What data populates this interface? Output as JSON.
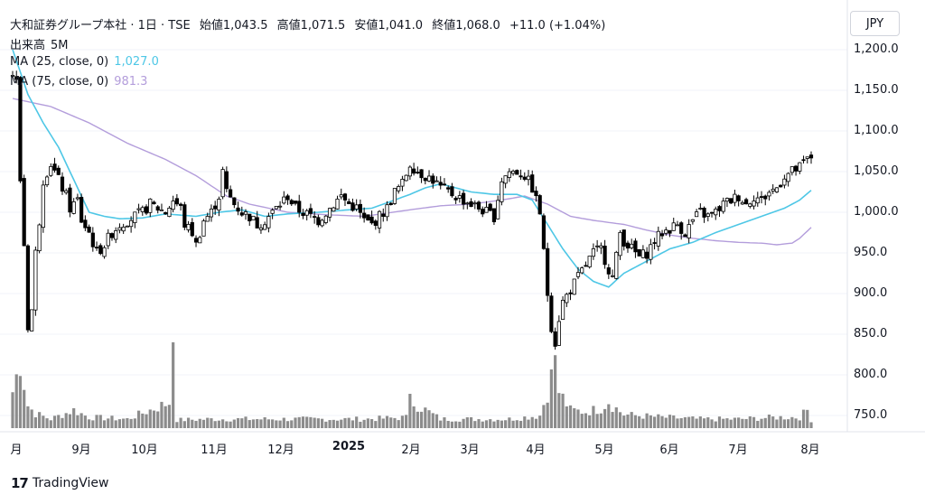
{
  "header": {
    "symbol": "大和証券グループ本社 · 1日 · TSE",
    "open_label": "始値",
    "open": "1,043.5",
    "high_label": "高値",
    "high": "1,071.5",
    "low_label": "安値",
    "low": "1,041.0",
    "close_label": "終値",
    "close": "1,068.0",
    "change": "+11.0 (+1.04%)",
    "volume_label": "出来高",
    "volume": "5M",
    "ma25_label": "MA (25, close, 0)",
    "ma25_value": "1,027.0",
    "ma75_label": "MA (75, close, 0)",
    "ma75_value": "981.3"
  },
  "currency": "JPY",
  "brand": "TradingView",
  "colors": {
    "up": "#ffffff",
    "down": "#000000",
    "wick": "#000000",
    "ma25": "#4ec7e6",
    "ma75": "#b39ddb",
    "volume": "#8c8c8c",
    "grid": "#f0f3fa"
  },
  "chart_data": {
    "type": "candlestick",
    "y_axis": {
      "ticks": [
        "1,200.0",
        "1,150.0",
        "1,100.0",
        "1,050.0",
        "1,000.0",
        "950.0",
        "900.0",
        "850.0",
        "800.0",
        "750.0"
      ],
      "min": 740,
      "max": 1215
    },
    "x_axis": {
      "ticks": [
        "月",
        "9月",
        "10月",
        "11月",
        "12月",
        "2025",
        "2月",
        "3月",
        "4月",
        "5月",
        "6月",
        "7月",
        "8月"
      ]
    },
    "price_anchors": [
      [
        0,
        1170
      ],
      [
        1,
        1160
      ],
      [
        2,
        1040
      ],
      [
        3,
        960
      ],
      [
        4,
        860
      ],
      [
        5,
        880
      ],
      [
        6,
        950
      ],
      [
        7,
        990
      ],
      [
        8,
        1040
      ],
      [
        10,
        1060
      ],
      [
        12,
        1040
      ],
      [
        14,
        1020
      ],
      [
        15,
        1005
      ],
      [
        17,
        1015
      ],
      [
        18,
        990
      ],
      [
        20,
        975
      ],
      [
        22,
        950
      ],
      [
        24,
        960
      ],
      [
        26,
        975
      ],
      [
        28,
        985
      ],
      [
        30,
        990
      ],
      [
        32,
        995
      ],
      [
        34,
        1000
      ],
      [
        36,
        1010
      ],
      [
        38,
        1005
      ],
      [
        40,
        1000
      ],
      [
        42,
        1015
      ],
      [
        44,
        1005
      ],
      [
        45,
        985
      ],
      [
        47,
        975
      ],
      [
        48,
        960
      ],
      [
        50,
        990
      ],
      [
        52,
        1000
      ],
      [
        54,
        1020
      ],
      [
        55,
        1050
      ],
      [
        56,
        1025
      ],
      [
        58,
        1010
      ],
      [
        60,
        1000
      ],
      [
        62,
        995
      ],
      [
        64,
        985
      ],
      [
        66,
        990
      ],
      [
        68,
        1000
      ],
      [
        70,
        1010
      ],
      [
        72,
        1020
      ],
      [
        74,
        1005
      ],
      [
        76,
        1000
      ],
      [
        78,
        995
      ],
      [
        80,
        990
      ],
      [
        82,
        1000
      ],
      [
        84,
        1010
      ],
      [
        86,
        1020
      ],
      [
        88,
        1010
      ],
      [
        90,
        1005
      ],
      [
        92,
        990
      ],
      [
        94,
        985
      ],
      [
        96,
        995
      ],
      [
        98,
        1005
      ],
      [
        100,
        1025
      ],
      [
        102,
        1035
      ],
      [
        104,
        1060
      ],
      [
        106,
        1050
      ],
      [
        108,
        1045
      ],
      [
        110,
        1040
      ],
      [
        112,
        1030
      ],
      [
        114,
        1025
      ],
      [
        116,
        1020
      ],
      [
        118,
        1015
      ],
      [
        120,
        1010
      ],
      [
        122,
        1005
      ],
      [
        124,
        1000
      ],
      [
        126,
        995
      ],
      [
        128,
        1040
      ],
      [
        130,
        1050
      ],
      [
        132,
        1050
      ],
      [
        134,
        1045
      ],
      [
        136,
        1030
      ],
      [
        138,
        1000
      ],
      [
        139,
        950
      ],
      [
        140,
        900
      ],
      [
        141,
        860
      ],
      [
        142,
        840
      ],
      [
        143,
        870
      ],
      [
        144,
        890
      ],
      [
        146,
        905
      ],
      [
        148,
        920
      ],
      [
        150,
        935
      ],
      [
        152,
        950
      ],
      [
        154,
        955
      ],
      [
        156,
        930
      ],
      [
        157,
        920
      ],
      [
        158,
        945
      ],
      [
        159,
        975
      ],
      [
        160,
        965
      ],
      [
        162,
        955
      ],
      [
        164,
        945
      ],
      [
        166,
        950
      ],
      [
        168,
        965
      ],
      [
        170,
        975
      ],
      [
        172,
        980
      ],
      [
        174,
        985
      ],
      [
        176,
        975
      ],
      [
        178,
        990
      ],
      [
        180,
        1000
      ],
      [
        182,
        995
      ],
      [
        184,
        1000
      ],
      [
        186,
        1010
      ],
      [
        188,
        1015
      ],
      [
        190,
        1020
      ],
      [
        192,
        1010
      ],
      [
        194,
        1020
      ],
      [
        196,
        1015
      ],
      [
        198,
        1025
      ],
      [
        200,
        1030
      ],
      [
        202,
        1045
      ],
      [
        204,
        1050
      ],
      [
        206,
        1055
      ],
      [
        208,
        1065
      ],
      [
        209,
        1068
      ]
    ],
    "volume_anchors": [
      [
        0,
        40
      ],
      [
        2,
        75
      ],
      [
        3,
        50
      ],
      [
        4,
        25
      ],
      [
        6,
        16
      ],
      [
        10,
        10
      ],
      [
        16,
        20
      ],
      [
        20,
        12
      ],
      [
        30,
        10
      ],
      [
        42,
        30
      ],
      [
        43,
        9
      ],
      [
        52,
        10
      ],
      [
        62,
        10
      ],
      [
        72,
        10
      ],
      [
        82,
        10
      ],
      [
        92,
        10
      ],
      [
        104,
        12
      ],
      [
        105,
        28
      ],
      [
        112,
        10
      ],
      [
        122,
        10
      ],
      [
        130,
        10
      ],
      [
        138,
        14
      ],
      [
        140,
        40
      ],
      [
        141,
        55
      ],
      [
        142,
        70
      ],
      [
        143,
        40
      ],
      [
        146,
        20
      ],
      [
        150,
        18
      ],
      [
        154,
        22
      ],
      [
        156,
        30
      ],
      [
        157,
        25
      ],
      [
        160,
        15
      ],
      [
        170,
        12
      ],
      [
        180,
        10
      ],
      [
        190,
        10
      ],
      [
        200,
        12
      ],
      [
        206,
        12
      ],
      [
        208,
        20
      ],
      [
        209,
        9
      ]
    ],
    "volume_spikes": [
      [
        42,
        95
      ],
      [
        141,
        65
      ],
      [
        104,
        38
      ]
    ],
    "ma25_anchors": [
      [
        0,
        1200
      ],
      [
        4,
        1145
      ],
      [
        8,
        1110
      ],
      [
        12,
        1080
      ],
      [
        16,
        1040
      ],
      [
        20,
        1000
      ],
      [
        24,
        995
      ],
      [
        28,
        992
      ],
      [
        34,
        993
      ],
      [
        40,
        998
      ],
      [
        48,
        995
      ],
      [
        54,
        1000
      ],
      [
        60,
        1003
      ],
      [
        66,
        995
      ],
      [
        72,
        998
      ],
      [
        80,
        1000
      ],
      [
        88,
        1003
      ],
      [
        94,
        1005
      ],
      [
        100,
        1015
      ],
      [
        104,
        1022
      ],
      [
        108,
        1030
      ],
      [
        112,
        1035
      ],
      [
        120,
        1025
      ],
      [
        126,
        1022
      ],
      [
        132,
        1022
      ],
      [
        136,
        1015
      ],
      [
        140,
        985
      ],
      [
        144,
        955
      ],
      [
        148,
        930
      ],
      [
        152,
        915
      ],
      [
        156,
        908
      ],
      [
        160,
        925
      ],
      [
        166,
        940
      ],
      [
        172,
        955
      ],
      [
        178,
        963
      ],
      [
        184,
        975
      ],
      [
        190,
        985
      ],
      [
        196,
        995
      ],
      [
        202,
        1005
      ],
      [
        206,
        1015
      ],
      [
        209,
        1027
      ]
    ],
    "ma75_anchors": [
      [
        0,
        1140
      ],
      [
        10,
        1130
      ],
      [
        20,
        1110
      ],
      [
        30,
        1085
      ],
      [
        40,
        1065
      ],
      [
        48,
        1045
      ],
      [
        56,
        1020
      ],
      [
        62,
        1010
      ],
      [
        72,
        1000
      ],
      [
        82,
        997
      ],
      [
        92,
        995
      ],
      [
        104,
        1003
      ],
      [
        112,
        1008
      ],
      [
        120,
        1010
      ],
      [
        128,
        1015
      ],
      [
        134,
        1020
      ],
      [
        140,
        1010
      ],
      [
        146,
        995
      ],
      [
        152,
        990
      ],
      [
        160,
        985
      ],
      [
        166,
        978
      ],
      [
        172,
        972
      ],
      [
        178,
        968
      ],
      [
        184,
        965
      ],
      [
        190,
        963
      ],
      [
        196,
        962
      ],
      [
        200,
        960
      ],
      [
        204,
        962
      ],
      [
        206,
        968
      ],
      [
        209,
        981.3
      ]
    ]
  }
}
